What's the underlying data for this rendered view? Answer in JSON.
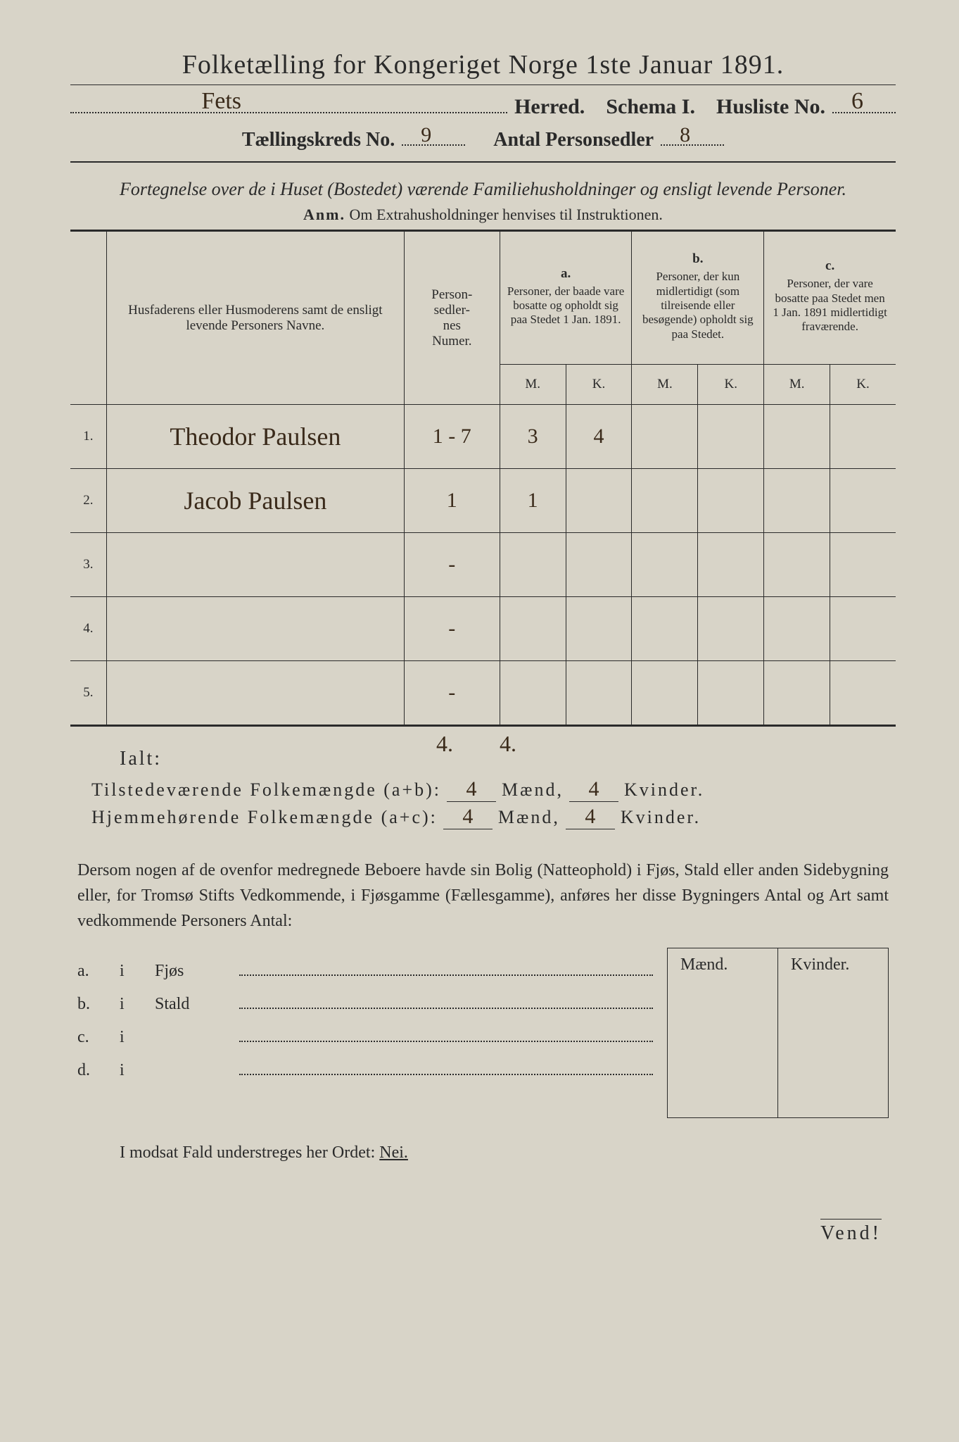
{
  "title": "Folketælling for Kongeriget Norge 1ste Januar 1891.",
  "line2": {
    "herred_hand": "Fets",
    "herred_label": "Herred.",
    "schema_label": "Schema I.",
    "husliste_label": "Husliste No.",
    "husliste_hand": "6"
  },
  "line3": {
    "kreds_label": "Tællingskreds No.",
    "kreds_hand": "9",
    "antal_label": "Antal Personsedler",
    "antal_hand": "8"
  },
  "subcaption": "Fortegnelse over de i Huset (Bostedet) værende Familiehusholdninger og ensligt levende Personer.",
  "anm_label": "Anm.",
  "anm_text": "Om Extrahusholdninger henvises til Instruktionen.",
  "headers": {
    "name": "Husfaderens eller Husmoderens samt de ensligt levende Personers Navne.",
    "num": "Person-\nsedler-\nnes\nNumer.",
    "a_label": "a.",
    "a_text": "Personer, der baade vare bosatte og opholdt sig paa Stedet 1 Jan. 1891.",
    "b_label": "b.",
    "b_text": "Personer, der kun midlertidigt (som tilreisende eller besøgende) opholdt sig paa Stedet.",
    "c_label": "c.",
    "c_text": "Personer, der vare bosatte paa Stedet men 1 Jan. 1891 midlertidigt fraværende.",
    "M": "M.",
    "K": "K."
  },
  "rows": [
    {
      "n": "1.",
      "name": "Theodor Paulsen",
      "num": "1 - 7",
      "aM": "3",
      "aK": "4",
      "bM": "",
      "bK": "",
      "cM": "",
      "cK": ""
    },
    {
      "n": "2.",
      "name": "Jacob Paulsen",
      "num": "1",
      "aM": "1",
      "aK": "",
      "bM": "",
      "bK": "",
      "cM": "",
      "cK": ""
    },
    {
      "n": "3.",
      "name": "",
      "num": "-",
      "aM": "",
      "aK": "",
      "bM": "",
      "bK": "",
      "cM": "",
      "cK": ""
    },
    {
      "n": "4.",
      "name": "",
      "num": "-",
      "aM": "",
      "aK": "",
      "bM": "",
      "bK": "",
      "cM": "",
      "cK": ""
    },
    {
      "n": "5.",
      "name": "",
      "num": "-",
      "aM": "",
      "aK": "",
      "bM": "",
      "bK": "",
      "cM": "",
      "cK": ""
    }
  ],
  "tally_hand": {
    "aM": "4.",
    "aK": "4."
  },
  "ialt": "Ialt:",
  "sum1": {
    "label": "Tilstedeværende Folkemængde (a+b):",
    "m": "4",
    "mid": "Mænd,",
    "k": "4",
    "end": "Kvinder."
  },
  "sum2": {
    "label": "Hjemmehørende Folkemængde (a+c):",
    "m": "4",
    "mid": "Mænd,",
    "k": "4",
    "end": "Kvinder."
  },
  "para": "Dersom nogen af de ovenfor medregnede Beboere havde sin Bolig (Natteophold) i Fjøs, Stald eller anden Sidebygning eller, for Tromsø Stifts Vedkommende, i Fjøsgamme (Fællesgamme), anføres her disse Bygningers Antal og Art samt vedkommende Personers Antal:",
  "outb_headers": {
    "m": "Mænd.",
    "k": "Kvinder."
  },
  "outb_rows": [
    {
      "k": "a.",
      "i": "i",
      "lbl": "Fjøs"
    },
    {
      "k": "b.",
      "i": "i",
      "lbl": "Stald"
    },
    {
      "k": "c.",
      "i": "i",
      "lbl": ""
    },
    {
      "k": "d.",
      "i": "i",
      "lbl": ""
    }
  ],
  "nei_text": "I modsat Fald understreges her Ordet:",
  "nei_word": "Nei.",
  "vend": "Vend!",
  "colors": {
    "bg": "#d8d4c8",
    "ink": "#2a2a2a",
    "hand": "#3a2a1a"
  }
}
